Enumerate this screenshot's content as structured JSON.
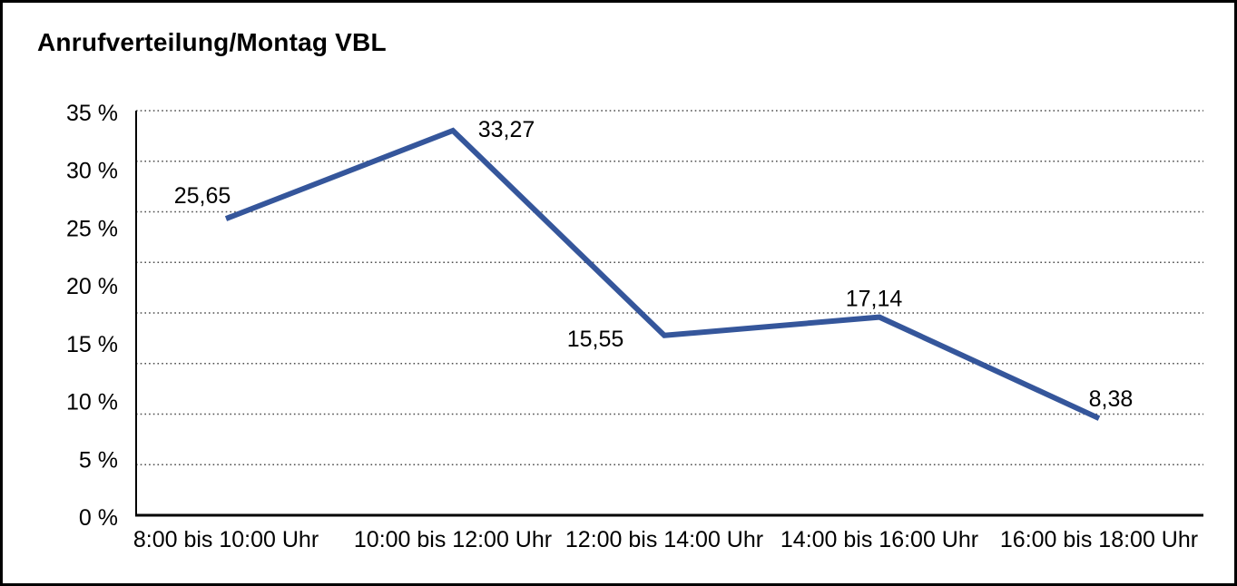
{
  "window": {
    "background": "#ffffff",
    "border_color": "#000000"
  },
  "chart_data": {
    "type": "line",
    "title": "Anrufverteilung/Montag VBL",
    "categories": [
      "8:00 bis 10:00 Uhr",
      "10:00 bis 12:00 Uhr",
      "12:00 bis 14:00 Uhr",
      "14:00 bis 16:00 Uhr",
      "16:00 bis 18:00 Uhr"
    ],
    "series": [
      {
        "values": [
          25.65,
          33.27,
          15.55,
          17.14,
          8.38
        ]
      }
    ],
    "data_labels": [
      "25,65",
      "33,27",
      "15,55",
      "17,14",
      "8,38"
    ],
    "y_ticks": [
      "35 %",
      "30 %",
      "25 %",
      "20 %",
      "15 %",
      "10 %",
      "5 %",
      "0 %"
    ],
    "ylim": [
      0,
      35
    ],
    "xlabel": "",
    "ylabel": "",
    "grid": true,
    "gridline_style": "dotted",
    "gridline_count": 9,
    "legend": "none",
    "line_color": "#35569B",
    "grid_color": "#4d4d4d",
    "axis_color": "#000000",
    "text_color": "#000000"
  }
}
